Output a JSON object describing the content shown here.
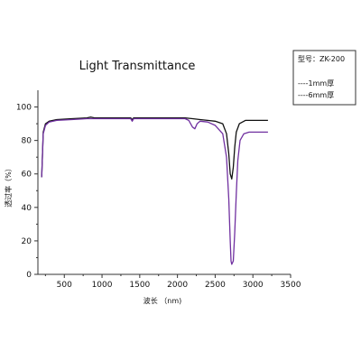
{
  "chart_data": {
    "type": "line",
    "title": "Light Transmittance",
    "xlabel": "波长 （nm)",
    "ylabel": "透过率（%）",
    "xlim": [
      150,
      3500
    ],
    "ylim": [
      0,
      110
    ],
    "x_ticks": [
      "500",
      "1000",
      "1500",
      "2000",
      "2500",
      "3000",
      "3500"
    ],
    "y_ticks": [
      "0",
      "20",
      "40",
      "60",
      "80",
      "100"
    ],
    "legend": {
      "position": "top-right",
      "model": "型号：ZK-200",
      "entries": [
        "----1mm厚",
        "----6mm厚"
      ]
    },
    "series": [
      {
        "name": "1mm厚",
        "color": "#111111",
        "points": [
          [
            200,
            58
          ],
          [
            220,
            85
          ],
          [
            250,
            90
          ],
          [
            300,
            91.5
          ],
          [
            400,
            92.5
          ],
          [
            600,
            93
          ],
          [
            800,
            93.5
          ],
          [
            850,
            94
          ],
          [
            900,
            93.5
          ],
          [
            1200,
            93.5
          ],
          [
            1380,
            93.5
          ],
          [
            1400,
            92.5
          ],
          [
            1420,
            93.5
          ],
          [
            1600,
            93.5
          ],
          [
            1900,
            93.5
          ],
          [
            2100,
            93.5
          ],
          [
            2200,
            93
          ],
          [
            2300,
            92.5
          ],
          [
            2400,
            92
          ],
          [
            2500,
            91.5
          ],
          [
            2600,
            90
          ],
          [
            2650,
            84
          ],
          [
            2680,
            72
          ],
          [
            2700,
            60
          ],
          [
            2720,
            57
          ],
          [
            2740,
            64
          ],
          [
            2760,
            76
          ],
          [
            2780,
            85
          ],
          [
            2820,
            90
          ],
          [
            2900,
            92
          ],
          [
            3000,
            92
          ],
          [
            3100,
            92
          ],
          [
            3200,
            92
          ]
        ]
      },
      {
        "name": "6mm厚",
        "color": "#7030a0",
        "points": [
          [
            200,
            58
          ],
          [
            220,
            84
          ],
          [
            250,
            89
          ],
          [
            300,
            91
          ],
          [
            400,
            92
          ],
          [
            600,
            92.5
          ],
          [
            800,
            93
          ],
          [
            900,
            93
          ],
          [
            1200,
            93
          ],
          [
            1380,
            93
          ],
          [
            1400,
            91.5
          ],
          [
            1420,
            93
          ],
          [
            1600,
            93
          ],
          [
            1900,
            93
          ],
          [
            2100,
            93
          ],
          [
            2150,
            92
          ],
          [
            2200,
            88
          ],
          [
            2230,
            87
          ],
          [
            2260,
            90
          ],
          [
            2300,
            91.5
          ],
          [
            2400,
            91
          ],
          [
            2500,
            89
          ],
          [
            2600,
            84
          ],
          [
            2650,
            70
          ],
          [
            2680,
            45
          ],
          [
            2700,
            20
          ],
          [
            2710,
            8
          ],
          [
            2720,
            6
          ],
          [
            2740,
            8
          ],
          [
            2760,
            25
          ],
          [
            2780,
            48
          ],
          [
            2800,
            68
          ],
          [
            2830,
            80
          ],
          [
            2880,
            84
          ],
          [
            2950,
            85
          ],
          [
            3050,
            85
          ],
          [
            3150,
            85
          ],
          [
            3200,
            85
          ]
        ]
      }
    ]
  }
}
